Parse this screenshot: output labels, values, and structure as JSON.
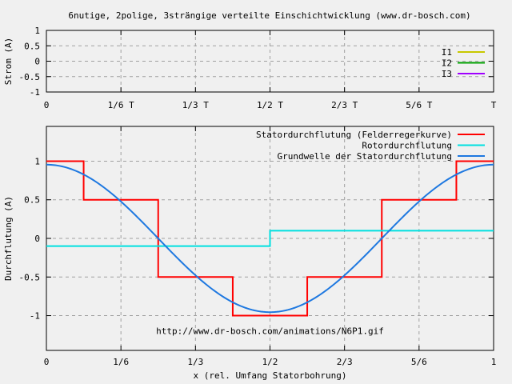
{
  "title": "6nutige, 2polige, 3strängige verteilte Einschichtwicklung (www.dr-bosch.com)",
  "colors": {
    "background": "#f0f0f0",
    "grid": "#a0a0a0",
    "I1": "#c8c800",
    "I2": "#00a000",
    "I3": "#a000ff",
    "stator": "#ff0000",
    "rotor": "#00e0e0",
    "fundamental": "#1e78e0"
  },
  "chart_data": [
    {
      "type": "line",
      "ylabel": "Strom (A)",
      "xlabel": "",
      "xlim": [
        0,
        1
      ],
      "ylim": [
        -1,
        1
      ],
      "grid": true,
      "legend_position": "right",
      "x_ticks": [
        {
          "value": 0,
          "label": "0"
        },
        {
          "value": 0.16667,
          "label": "1/6 T"
        },
        {
          "value": 0.33333,
          "label": "1/3 T"
        },
        {
          "value": 0.5,
          "label": "1/2 T"
        },
        {
          "value": 0.66667,
          "label": "2/3 T"
        },
        {
          "value": 0.83333,
          "label": "5/6 T"
        },
        {
          "value": 1,
          "label": "T"
        }
      ],
      "y_ticks": [
        {
          "value": 1,
          "label": "1"
        },
        {
          "value": 0.5,
          "label": "0.5"
        },
        {
          "value": 0,
          "label": "0"
        },
        {
          "value": -0.5,
          "label": "-0.5"
        },
        {
          "value": -1,
          "label": "-1"
        }
      ],
      "series": [
        {
          "name": "I1",
          "x": [],
          "y": []
        },
        {
          "name": "I2",
          "x": [],
          "y": []
        },
        {
          "name": "I3",
          "x": [],
          "y": []
        }
      ]
    },
    {
      "type": "line",
      "ylabel": "Durchflutung (A)",
      "xlabel": "x (rel. Umfang Statorbohrung)",
      "xlim": [
        0,
        1
      ],
      "ylim": [
        -1.45,
        1.45
      ],
      "grid": true,
      "legend_position": "top-right",
      "annotation": "http://www.dr-bosch.com/animations/N6P1.gif",
      "x_ticks": [
        {
          "value": 0,
          "label": "0"
        },
        {
          "value": 0.16667,
          "label": "1/6"
        },
        {
          "value": 0.33333,
          "label": "1/3"
        },
        {
          "value": 0.5,
          "label": "1/2"
        },
        {
          "value": 0.66667,
          "label": "2/3"
        },
        {
          "value": 0.83333,
          "label": "5/6"
        },
        {
          "value": 1,
          "label": "1"
        }
      ],
      "y_ticks": [
        {
          "value": 1,
          "label": "1"
        },
        {
          "value": 0.5,
          "label": "0.5"
        },
        {
          "value": 0,
          "label": "0"
        },
        {
          "value": -0.5,
          "label": "-0.5"
        },
        {
          "value": -1,
          "label": "-1"
        }
      ],
      "series": [
        {
          "name": "Statordurchflutung (Felderregerkurve)",
          "kind": "step",
          "x": [
            0,
            0.0833,
            0.0833,
            0.25,
            0.25,
            0.4167,
            0.4167,
            0.5833,
            0.5833,
            0.75,
            0.75,
            0.9167,
            0.9167,
            1
          ],
          "y": [
            1,
            1,
            0.5,
            0.5,
            -0.5,
            -0.5,
            -1,
            -1,
            -0.5,
            -0.5,
            0.5,
            0.5,
            1,
            1
          ]
        },
        {
          "name": "Rotordurchflutung",
          "kind": "step",
          "x": [
            0,
            0.5,
            0.5,
            1
          ],
          "y": [
            -0.1,
            -0.1,
            0.1,
            0.1
          ]
        },
        {
          "name": "Grundwelle der Statordurchflutung",
          "kind": "cosine",
          "amplitude": 0.955,
          "x": [
            0,
            0.05,
            0.1,
            0.15,
            0.2,
            0.25,
            0.3,
            0.35,
            0.4,
            0.45,
            0.5,
            0.55,
            0.6,
            0.65,
            0.7,
            0.75,
            0.8,
            0.85,
            0.9,
            0.95,
            1
          ],
          "y": [
            0.955,
            0.908,
            0.773,
            0.561,
            0.295,
            0.0,
            -0.295,
            -0.561,
            -0.773,
            -0.908,
            -0.955,
            -0.908,
            -0.773,
            -0.561,
            -0.295,
            0.0,
            0.295,
            0.561,
            0.773,
            0.908,
            0.955
          ]
        }
      ]
    }
  ]
}
